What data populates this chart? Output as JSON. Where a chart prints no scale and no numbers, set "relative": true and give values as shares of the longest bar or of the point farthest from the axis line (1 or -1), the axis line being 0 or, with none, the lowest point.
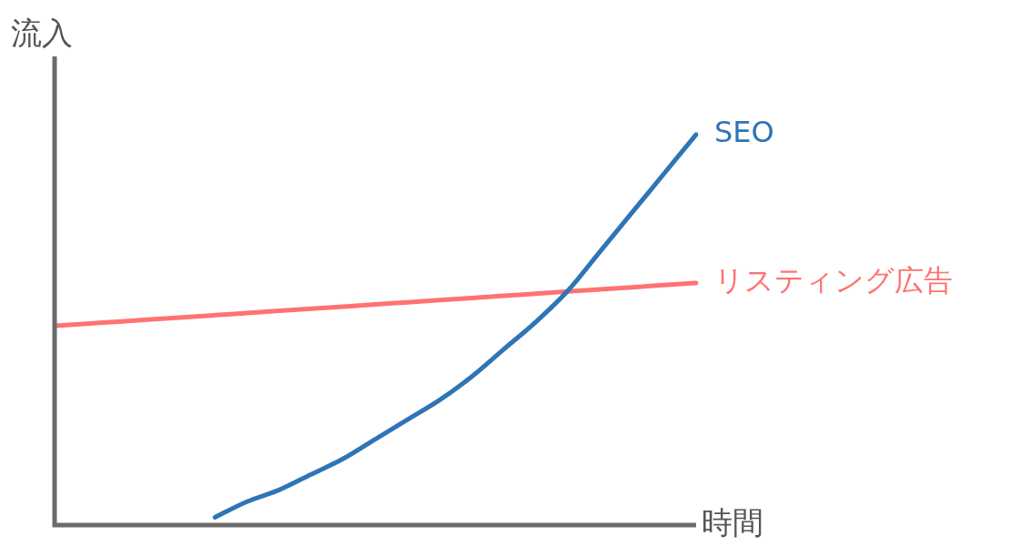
{
  "chart_data": {
    "type": "line",
    "relative": true,
    "xlabel": "時間",
    "ylabel": "流入",
    "legend": false,
    "marker": "none",
    "line_style": "solid",
    "categories": [
      null,
      null,
      null,
      null,
      null,
      null,
      null,
      null,
      null,
      null,
      null,
      null,
      null,
      null,
      null,
      null,
      null,
      null,
      null,
      null,
      null
    ],
    "series": [
      {
        "name": "SEO",
        "color": "#2e75b6",
        "values": [
          null,
          null,
          null,
          null,
          null,
          0.02,
          0.06,
          0.09,
          0.13,
          0.17,
          0.22,
          0.27,
          0.32,
          0.38,
          0.45,
          0.52,
          0.6,
          0.7,
          0.8,
          0.9,
          1
        ]
      },
      {
        "name": "リスティング広告",
        "color": "#ff7272",
        "values": [
          0.51,
          0.5155,
          0.521,
          0.5265,
          0.532,
          0.5375,
          0.543,
          0.5485,
          0.554,
          0.5595,
          0.565,
          0.5705,
          0.576,
          0.5815,
          0.587,
          0.5925,
          0.598,
          0.6035,
          0.609,
          0.6145,
          0.62
        ]
      }
    ]
  }
}
